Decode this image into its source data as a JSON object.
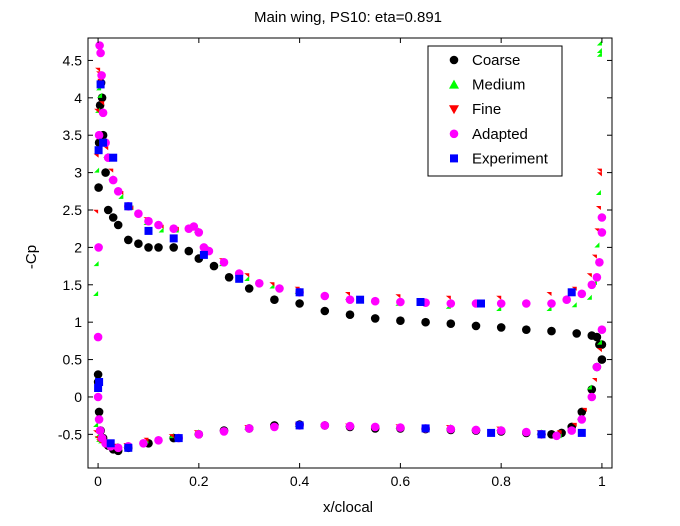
{
  "chart_data": {
    "type": "scatter",
    "title": "Main wing, PS10: eta=0.891",
    "xlabel": "x/clocal",
    "ylabel": "-Cp",
    "xlim": [
      -0.02,
      1.02
    ],
    "ylim": [
      -0.95,
      4.8
    ],
    "xticks": [
      "0",
      "0.2",
      "0.4",
      "0.6",
      "0.8",
      "1"
    ],
    "yticks": [
      "-0.5",
      "0",
      "0.5",
      "1",
      "1.5",
      "2",
      "2.5",
      "3",
      "3.5",
      "4",
      "4.5"
    ],
    "xtick_values": [
      0,
      0.2,
      0.4,
      0.6,
      0.8,
      1.0
    ],
    "ytick_values": [
      -0.5,
      0,
      0.5,
      1,
      1.5,
      2,
      2.5,
      3,
      3.5,
      4,
      4.5
    ],
    "legend_position": "top-right",
    "series": [
      {
        "name": "Coarse",
        "marker": "circle",
        "color": "#000000",
        "x": [
          0.0,
          0.001,
          0.002,
          0.004,
          0.006,
          0.008,
          0.01,
          0.015,
          0.02,
          0.03,
          0.04,
          0.06,
          0.08,
          0.1,
          0.12,
          0.15,
          0.18,
          0.2,
          0.23,
          0.26,
          0.3,
          0.35,
          0.4,
          0.45,
          0.5,
          0.55,
          0.6,
          0.65,
          0.7,
          0.75,
          0.8,
          0.85,
          0.9,
          0.95,
          0.98,
          0.99,
          0.995,
          1.0,
          0.0,
          0.002,
          0.005,
          0.01,
          0.02,
          0.03,
          0.04,
          0.06,
          0.1,
          0.15,
          0.2,
          0.25,
          0.3,
          0.35,
          0.4,
          0.45,
          0.5,
          0.55,
          0.6,
          0.65,
          0.7,
          0.75,
          0.8,
          0.85,
          0.88,
          0.9,
          0.92,
          0.94,
          0.96,
          0.98,
          0.99,
          1.0
        ],
        "y": [
          0.3,
          2.8,
          3.4,
          3.9,
          4.2,
          4.0,
          3.5,
          3.0,
          2.5,
          2.4,
          2.3,
          2.1,
          2.05,
          2.0,
          2.0,
          2.0,
          1.95,
          1.85,
          1.75,
          1.6,
          1.45,
          1.3,
          1.25,
          1.15,
          1.1,
          1.05,
          1.02,
          1.0,
          0.98,
          0.95,
          0.93,
          0.9,
          0.88,
          0.85,
          0.82,
          0.8,
          0.7,
          0.5,
          0.2,
          -0.2,
          -0.45,
          -0.55,
          -0.65,
          -0.7,
          -0.72,
          -0.68,
          -0.62,
          -0.55,
          -0.5,
          -0.45,
          -0.42,
          -0.38,
          -0.37,
          -0.38,
          -0.4,
          -0.42,
          -0.42,
          -0.43,
          -0.44,
          -0.45,
          -0.46,
          -0.48,
          -0.5,
          -0.5,
          -0.48,
          -0.4,
          -0.2,
          0.1,
          0.4,
          0.7
        ]
      },
      {
        "name": "Medium",
        "marker": "triangle-up",
        "color": "#00ff00",
        "x": [
          0.0,
          0.001,
          0.002,
          0.004,
          0.006,
          0.008,
          0.01,
          0.02,
          0.03,
          0.05,
          0.07,
          0.1,
          0.13,
          0.16,
          0.19,
          0.2,
          0.22,
          0.25,
          0.3,
          0.35,
          0.4,
          0.5,
          0.6,
          0.7,
          0.8,
          0.9,
          0.95,
          0.98,
          0.99,
          0.995,
          0.998,
          1.0,
          1.0,
          1.0,
          0.0,
          0.003,
          0.006,
          0.01,
          0.02,
          0.04,
          0.06,
          0.1,
          0.15,
          0.2,
          0.3,
          0.4,
          0.5,
          0.6,
          0.7,
          0.8,
          0.88,
          0.92,
          0.96,
          0.98,
          1.0
        ],
        "y": [
          1.35,
          1.75,
          3.0,
          3.8,
          4.1,
          4.0,
          3.8,
          3.2,
          2.9,
          2.65,
          2.5,
          2.3,
          2.2,
          2.2,
          2.25,
          2.2,
          1.95,
          1.75,
          1.55,
          1.45,
          1.38,
          1.3,
          1.22,
          1.18,
          1.15,
          1.15,
          1.2,
          1.3,
          1.5,
          2.0,
          2.7,
          4.55,
          4.7,
          4.6,
          -0.4,
          -0.55,
          -0.6,
          -0.62,
          -0.65,
          -0.68,
          -0.68,
          -0.62,
          -0.55,
          -0.5,
          -0.44,
          -0.4,
          -0.4,
          -0.42,
          -0.43,
          -0.45,
          -0.5,
          -0.55,
          -0.3,
          0.1,
          0.7
        ]
      },
      {
        "name": "Fine",
        "marker": "triangle-down",
        "color": "#ff0000",
        "x": [
          0.0,
          0.001,
          0.002,
          0.004,
          0.006,
          0.008,
          0.012,
          0.02,
          0.03,
          0.05,
          0.07,
          0.1,
          0.13,
          0.16,
          0.19,
          0.2,
          0.22,
          0.25,
          0.3,
          0.35,
          0.4,
          0.5,
          0.6,
          0.7,
          0.8,
          0.9,
          0.95,
          0.98,
          0.99,
          0.995,
          0.998,
          1.0,
          1.0,
          0.0,
          0.003,
          0.006,
          0.01,
          0.02,
          0.04,
          0.06,
          0.1,
          0.15,
          0.2,
          0.3,
          0.4,
          0.5,
          0.6,
          0.7,
          0.8,
          0.88,
          0.92,
          0.95,
          0.97,
          0.99,
          1.0
        ],
        "y": [
          2.45,
          3.2,
          3.8,
          4.35,
          4.3,
          4.2,
          3.9,
          3.3,
          3.0,
          2.7,
          2.5,
          2.35,
          2.25,
          2.22,
          2.25,
          2.2,
          1.95,
          1.8,
          1.6,
          1.48,
          1.42,
          1.35,
          1.32,
          1.3,
          1.3,
          1.35,
          1.42,
          1.6,
          1.85,
          2.2,
          2.5,
          2.95,
          3.0,
          -0.5,
          -0.58,
          -0.62,
          -0.64,
          -0.66,
          -0.68,
          -0.67,
          -0.6,
          -0.55,
          -0.5,
          -0.43,
          -0.4,
          -0.41,
          -0.42,
          -0.43,
          -0.45,
          -0.5,
          -0.5,
          -0.4,
          -0.2,
          0.2,
          0.6
        ]
      },
      {
        "name": "Adapted",
        "marker": "circle",
        "color": "#ff00ff",
        "x": [
          0.0,
          0.001,
          0.002,
          0.003,
          0.005,
          0.007,
          0.01,
          0.015,
          0.02,
          0.03,
          0.04,
          0.06,
          0.08,
          0.1,
          0.12,
          0.15,
          0.18,
          0.19,
          0.2,
          0.21,
          0.22,
          0.25,
          0.28,
          0.32,
          0.36,
          0.4,
          0.45,
          0.5,
          0.55,
          0.6,
          0.65,
          0.7,
          0.75,
          0.8,
          0.85,
          0.9,
          0.93,
          0.96,
          0.98,
          0.99,
          0.995,
          1.0,
          1.0,
          0.0,
          0.002,
          0.004,
          0.008,
          0.015,
          0.025,
          0.04,
          0.06,
          0.09,
          0.12,
          0.16,
          0.2,
          0.25,
          0.3,
          0.35,
          0.4,
          0.45,
          0.5,
          0.55,
          0.6,
          0.65,
          0.7,
          0.75,
          0.8,
          0.85,
          0.88,
          0.91,
          0.94,
          0.96,
          0.98,
          0.99,
          1.0
        ],
        "y": [
          0.8,
          2.0,
          3.5,
          4.7,
          4.6,
          4.3,
          3.8,
          3.4,
          3.2,
          2.9,
          2.75,
          2.55,
          2.45,
          2.35,
          2.3,
          2.25,
          2.25,
          2.28,
          2.2,
          2.0,
          1.95,
          1.8,
          1.65,
          1.52,
          1.45,
          1.4,
          1.35,
          1.3,
          1.28,
          1.27,
          1.26,
          1.25,
          1.25,
          1.25,
          1.25,
          1.25,
          1.3,
          1.38,
          1.5,
          1.6,
          1.8,
          2.2,
          2.4,
          0.0,
          -0.3,
          -0.45,
          -0.55,
          -0.62,
          -0.66,
          -0.68,
          -0.66,
          -0.62,
          -0.58,
          -0.55,
          -0.5,
          -0.46,
          -0.42,
          -0.4,
          -0.38,
          -0.38,
          -0.39,
          -0.4,
          -0.41,
          -0.42,
          -0.43,
          -0.44,
          -0.45,
          -0.47,
          -0.5,
          -0.52,
          -0.45,
          -0.3,
          0.0,
          0.4,
          0.9
        ]
      },
      {
        "name": "Experiment",
        "marker": "square",
        "color": "#0000ff",
        "x": [
          0.0,
          0.001,
          0.005,
          0.01,
          0.03,
          0.06,
          0.1,
          0.15,
          0.21,
          0.28,
          0.4,
          0.52,
          0.64,
          0.76,
          0.94,
          0.002,
          0.025,
          0.06,
          0.16,
          0.4,
          0.65,
          0.78,
          0.88,
          0.96
        ],
        "y": [
          0.12,
          3.3,
          4.18,
          3.4,
          3.2,
          2.55,
          2.22,
          2.12,
          1.9,
          1.58,
          1.4,
          1.3,
          1.27,
          1.25,
          1.4,
          0.2,
          -0.62,
          -0.68,
          -0.55,
          -0.38,
          -0.42,
          -0.48,
          -0.5,
          -0.48
        ]
      }
    ]
  }
}
